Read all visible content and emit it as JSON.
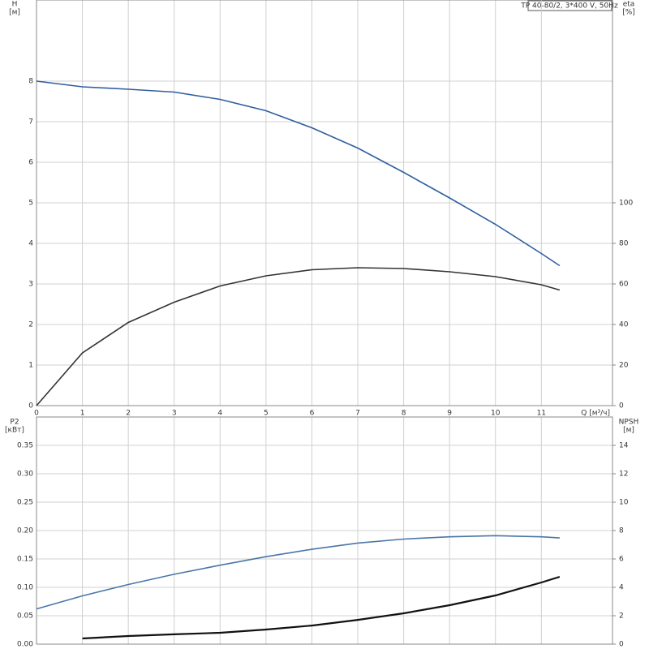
{
  "chart_data": [
    {
      "type": "line",
      "title": "TP 40-80/2, 3*400 V, 50Hz",
      "xlabel": "Q [м³/ч]",
      "ylabel": "H",
      "yunit": "[м]",
      "y2label": "eta",
      "y2unit": "[%]",
      "x": [
        0,
        1,
        2,
        3,
        4,
        5,
        6,
        7,
        8,
        9,
        10,
        11,
        11.4
      ],
      "xlim": [
        0,
        12.55
      ],
      "xticks": [
        0,
        1,
        2,
        3,
        4,
        5,
        6,
        7,
        8,
        9,
        10,
        11
      ],
      "ylim": [
        0,
        10
      ],
      "yticks": [
        0,
        1,
        2,
        3,
        4,
        5,
        6,
        7,
        8
      ],
      "y2lim": [
        0,
        200
      ],
      "y2ticks": [
        0,
        20,
        40,
        60,
        80,
        100
      ],
      "grid": true,
      "series": [
        {
          "color": "#2f5f9e",
          "values": [
            8.0,
            7.86,
            7.8,
            7.73,
            7.55,
            7.27,
            6.85,
            6.35,
            5.75,
            5.12,
            4.47,
            3.75,
            3.45
          ]
        },
        {
          "color": "#333333",
          "axis": "y2",
          "values": [
            0,
            26,
            41,
            51,
            59,
            64,
            67,
            68,
            67.6,
            66,
            63.6,
            59.6,
            57
          ]
        }
      ]
    },
    {
      "type": "line",
      "ylabel": "P2",
      "yunit": "[кВт]",
      "y2label": "NPSH",
      "y2unit": "[м]",
      "x": [
        0,
        1,
        2,
        3,
        4,
        5,
        6,
        7,
        8,
        9,
        10,
        11,
        11.4
      ],
      "xlim": [
        0,
        12.55
      ],
      "ylim": [
        0,
        0.4
      ],
      "yticks": [
        {
          "value": 0,
          "label": "0.00"
        },
        0.05,
        {
          "value": 0.1,
          "label": "0.10"
        },
        0.15,
        {
          "value": 0.2,
          "label": "0.20"
        },
        0.25,
        {
          "value": 0.3,
          "label": "0.30"
        },
        0.35
      ],
      "y2lim": [
        0,
        16
      ],
      "y2ticks": [
        0,
        2,
        4,
        6,
        8,
        10,
        12,
        14
      ],
      "grid": true,
      "series": [
        {
          "color": "#4a76a8",
          "values": [
            0.062,
            0.085,
            0.105,
            0.123,
            0.139,
            0.154,
            0.167,
            0.178,
            0.185,
            0.189,
            0.191,
            0.189,
            0.187
          ]
        },
        {
          "color": "#111111",
          "axis": "y2",
          "values": [
            null,
            0.4,
            0.57,
            0.69,
            0.8,
            1.03,
            1.31,
            1.71,
            2.17,
            2.74,
            3.43,
            4.34,
            4.74
          ]
        }
      ]
    }
  ]
}
